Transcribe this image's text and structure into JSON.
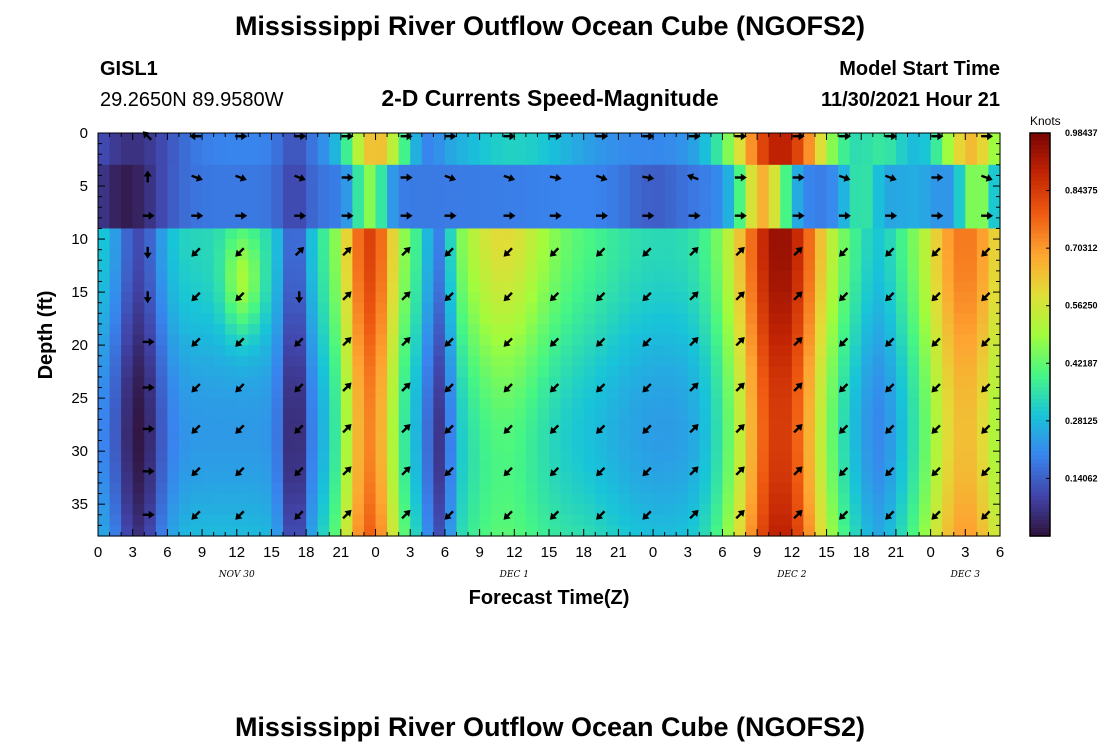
{
  "title": "Mississippi River Outflow Ocean Cube (NGOFS2)",
  "title_bottom": "Mississippi River Outflow Ocean Cube (NGOFS2)",
  "station": {
    "id": "GISL1",
    "coords": "29.2650N  89.9580W"
  },
  "subtitle": "2-D Currents Speed-Magnitude",
  "model_start": {
    "label": "Model Start Time",
    "value": "11/30/2021 Hour 21"
  },
  "colors": {
    "arrow": "#000000",
    "axis": "#000000"
  },
  "chart_data": {
    "type": "heatmap",
    "title": "2-D Currents Speed-Magnitude",
    "xlabel": "Forecast Time(Z)",
    "ylabel": "Depth (ft)",
    "x_range_hours": [
      0,
      78
    ],
    "y_range_ft": [
      0,
      38
    ],
    "y_ticks": [
      "0",
      "5",
      "10",
      "15",
      "20",
      "25",
      "30",
      "35"
    ],
    "x_ticks": [
      "0",
      "3",
      "6",
      "9",
      "12",
      "15",
      "18",
      "21",
      "0",
      "3",
      "6",
      "9",
      "12",
      "15",
      "18",
      "21",
      "0",
      "3",
      "6",
      "9",
      "12",
      "15",
      "18",
      "21",
      "0",
      "3",
      "6"
    ],
    "date_labels": [
      {
        "text": "NOV 30",
        "hour": 12
      },
      {
        "text": "DEC 1",
        "hour": 36
      },
      {
        "text": "DEC 2",
        "hour": 60
      },
      {
        "text": "DEC 3",
        "hour": 75
      }
    ],
    "colorbar": {
      "unit": "Knots",
      "min": 0.0,
      "max": 0.9844,
      "labels": [
        "0.98437",
        "0.84375",
        "0.70312",
        "0.56250",
        "0.42187",
        "0.28125",
        "0.14062"
      ],
      "label_values": [
        0.98437,
        0.84375,
        0.70312,
        0.5625,
        0.42187,
        0.28125,
        0.14062
      ]
    },
    "arrow_x_hours": [
      4.3,
      8.5,
      12.3,
      17.4,
      21.5,
      26.6,
      30.4,
      35.5,
      39.5,
      43.5,
      47.5,
      51.5,
      55.5,
      60.5,
      64.5,
      68.5,
      72.5,
      76.8
    ],
    "arrow_depths_ft": [
      0.3,
      4.2,
      7.8,
      11.2,
      15.4,
      19.7,
      24.0,
      27.9,
      31.9,
      36.0
    ],
    "arrow_rows": [
      [
        225,
        180,
        0,
        0,
        0,
        0,
        0,
        0,
        0,
        0,
        0,
        0,
        0,
        0,
        0,
        0,
        0,
        0
      ],
      [
        270,
        20,
        20,
        20,
        0,
        0,
        20,
        20,
        10,
        20,
        10,
        200,
        0,
        0,
        20,
        20,
        0,
        20
      ],
      [
        0,
        0,
        0,
        0,
        0,
        0,
        0,
        0,
        0,
        0,
        0,
        0,
        0,
        0,
        0,
        0,
        0,
        0
      ],
      [
        90,
        135,
        135,
        315,
        315,
        315,
        135,
        135,
        135,
        135,
        135,
        315,
        315,
        315,
        135,
        135,
        135,
        135
      ],
      [
        90,
        135,
        135,
        90,
        315,
        315,
        135,
        135,
        135,
        135,
        135,
        315,
        315,
        315,
        135,
        135,
        135,
        135
      ],
      [
        0,
        135,
        135,
        135,
        315,
        315,
        135,
        135,
        135,
        135,
        135,
        315,
        315,
        315,
        135,
        135,
        135,
        135
      ],
      [
        0,
        135,
        135,
        135,
        315,
        315,
        135,
        135,
        135,
        135,
        135,
        315,
        315,
        315,
        135,
        135,
        135,
        135
      ],
      [
        0,
        135,
        135,
        135,
        315,
        315,
        135,
        135,
        135,
        135,
        135,
        315,
        315,
        315,
        135,
        135,
        135,
        135
      ],
      [
        0,
        135,
        135,
        135,
        315,
        315,
        135,
        135,
        135,
        135,
        135,
        315,
        315,
        315,
        135,
        135,
        135,
        135
      ],
      [
        0,
        135,
        135,
        135,
        315,
        315,
        135,
        135,
        135,
        135,
        135,
        315,
        315,
        315,
        135,
        135,
        135,
        135
      ]
    ]
  }
}
